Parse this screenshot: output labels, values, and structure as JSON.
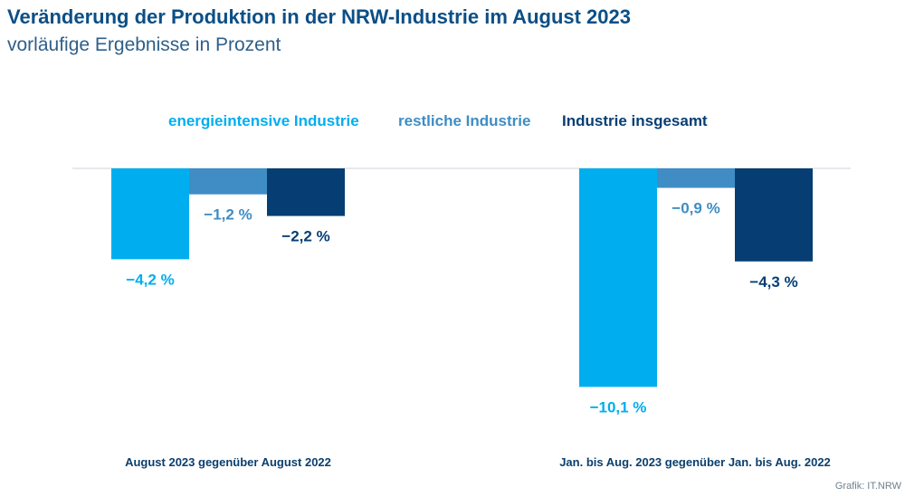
{
  "header": {
    "title": "Veränderung der Produktion in der NRW-Industrie im August 2023",
    "subtitle": "vorläufige Ergebnisse in Prozent"
  },
  "credit": "Grafik: IT.NRW",
  "colors": {
    "energieintensive": "#00aeef",
    "restliche": "#3f8dc4",
    "gesamt": "#063e74",
    "zero_line": "#dde2e7"
  },
  "chart_data": {
    "type": "bar",
    "title": "Veränderung der Produktion in der NRW-Industrie im August 2023",
    "subtitle": "vorläufige Ergebnisse in Prozent",
    "xlabel": "",
    "ylabel": "",
    "ylim": [
      -10.1,
      0
    ],
    "grid": false,
    "legend_position": "top-center",
    "categories": [
      "August 2023 gegenüber August 2022",
      "Jan. bis Aug. 2023 gegenüber Jan. bis Aug. 2022"
    ],
    "series": [
      {
        "name": "energieintensive Industrie",
        "color": "#00aeef",
        "values": [
          -4.2,
          -10.1
        ],
        "labels": [
          "−4,2 %",
          "−10,1 %"
        ]
      },
      {
        "name": "restliche Industrie",
        "color": "#3f8dc4",
        "values": [
          -1.2,
          -0.9
        ],
        "labels": [
          "−1,2 %",
          "−0,9 %"
        ]
      },
      {
        "name": "Industrie insgesamt",
        "color": "#063e74",
        "values": [
          -2.2,
          -4.3
        ],
        "labels": [
          "−2,2 %",
          "−4,3 %"
        ]
      }
    ]
  }
}
